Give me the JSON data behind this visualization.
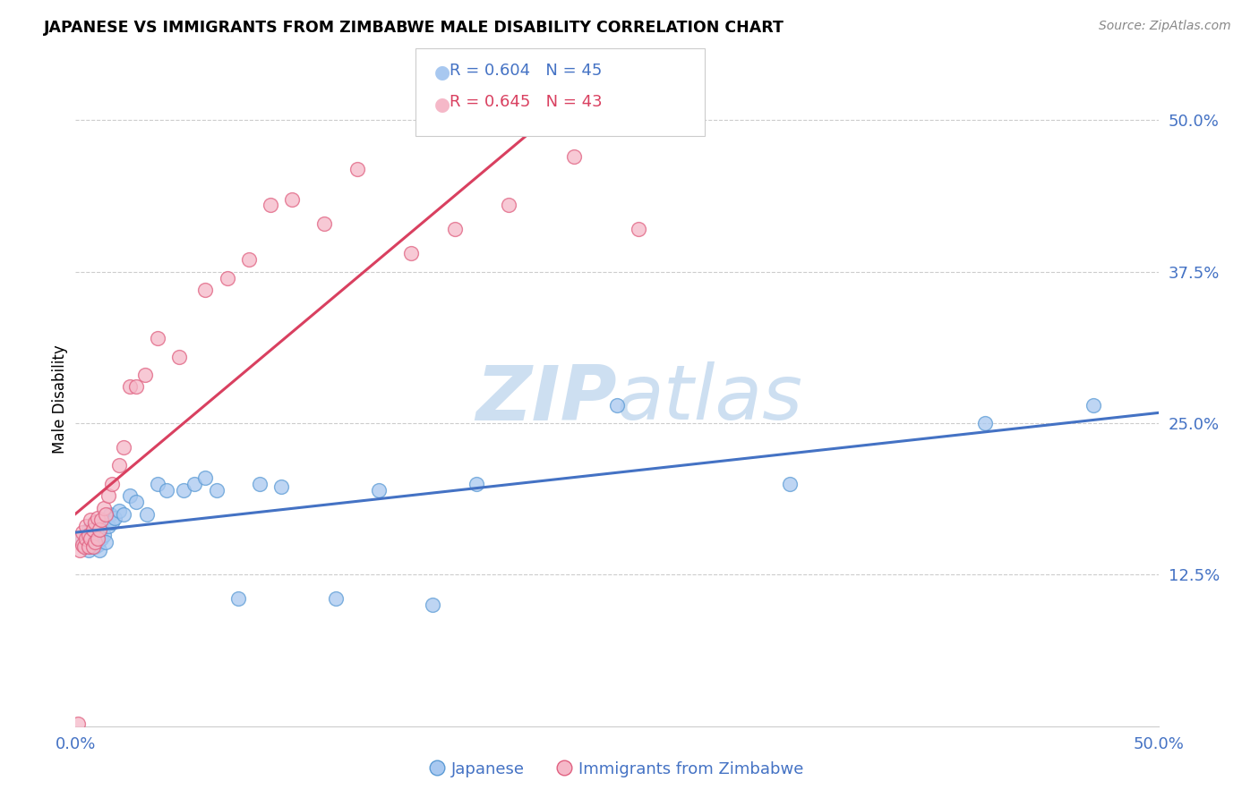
{
  "title": "JAPANESE VS IMMIGRANTS FROM ZIMBABWE MALE DISABILITY CORRELATION CHART",
  "source": "Source: ZipAtlas.com",
  "ylabel": "Male Disability",
  "xlim": [
    0.0,
    0.5
  ],
  "ylim": [
    0.0,
    0.54
  ],
  "xtick_positions": [
    0.0,
    0.125,
    0.25,
    0.375,
    0.5
  ],
  "xticklabels": [
    "0.0%",
    "",
    "",
    "",
    "50.0%"
  ],
  "ytick_positions": [
    0.125,
    0.25,
    0.375,
    0.5
  ],
  "ytick_labels": [
    "12.5%",
    "25.0%",
    "37.5%",
    "50.0%"
  ],
  "legend_R": [
    0.604,
    0.645
  ],
  "legend_N": [
    45,
    43
  ],
  "blue_scatter_color": "#A8C8F0",
  "blue_edge_color": "#5B9BD5",
  "pink_scatter_color": "#F5B8C8",
  "pink_edge_color": "#E06080",
  "blue_line_color": "#4472C4",
  "pink_line_color": "#D94060",
  "watermark_color": "#C8DCF0",
  "japanese_x": [
    0.002,
    0.004,
    0.005,
    0.006,
    0.006,
    0.007,
    0.007,
    0.008,
    0.008,
    0.009,
    0.009,
    0.01,
    0.01,
    0.011,
    0.011,
    0.012,
    0.012,
    0.013,
    0.014,
    0.015,
    0.016,
    0.017,
    0.018,
    0.02,
    0.022,
    0.025,
    0.028,
    0.033,
    0.038,
    0.042,
    0.05,
    0.055,
    0.06,
    0.065,
    0.075,
    0.085,
    0.095,
    0.12,
    0.14,
    0.165,
    0.185,
    0.25,
    0.33,
    0.42,
    0.47
  ],
  "japanese_y": [
    0.155,
    0.15,
    0.158,
    0.145,
    0.162,
    0.148,
    0.155,
    0.152,
    0.16,
    0.148,
    0.155,
    0.15,
    0.158,
    0.145,
    0.162,
    0.155,
    0.165,
    0.158,
    0.152,
    0.165,
    0.175,
    0.168,
    0.172,
    0.178,
    0.175,
    0.19,
    0.185,
    0.175,
    0.2,
    0.195,
    0.195,
    0.2,
    0.205,
    0.195,
    0.105,
    0.2,
    0.198,
    0.105,
    0.195,
    0.1,
    0.2,
    0.265,
    0.2,
    0.25,
    0.265
  ],
  "zimbabwe_x": [
    0.001,
    0.002,
    0.003,
    0.003,
    0.004,
    0.005,
    0.005,
    0.006,
    0.006,
    0.007,
    0.007,
    0.008,
    0.008,
    0.009,
    0.009,
    0.01,
    0.01,
    0.011,
    0.012,
    0.013,
    0.014,
    0.015,
    0.017,
    0.02,
    0.022,
    0.025,
    0.028,
    0.032,
    0.038,
    0.048,
    0.06,
    0.07,
    0.08,
    0.09,
    0.1,
    0.115,
    0.13,
    0.155,
    0.175,
    0.2,
    0.23,
    0.26,
    0.001
  ],
  "zimbabwe_y": [
    0.155,
    0.145,
    0.15,
    0.16,
    0.148,
    0.155,
    0.165,
    0.148,
    0.158,
    0.155,
    0.17,
    0.148,
    0.162,
    0.152,
    0.168,
    0.155,
    0.172,
    0.162,
    0.17,
    0.18,
    0.175,
    0.19,
    0.2,
    0.215,
    0.23,
    0.28,
    0.28,
    0.29,
    0.32,
    0.305,
    0.36,
    0.37,
    0.385,
    0.43,
    0.435,
    0.415,
    0.46,
    0.39,
    0.41,
    0.43,
    0.47,
    0.41,
    0.002
  ]
}
